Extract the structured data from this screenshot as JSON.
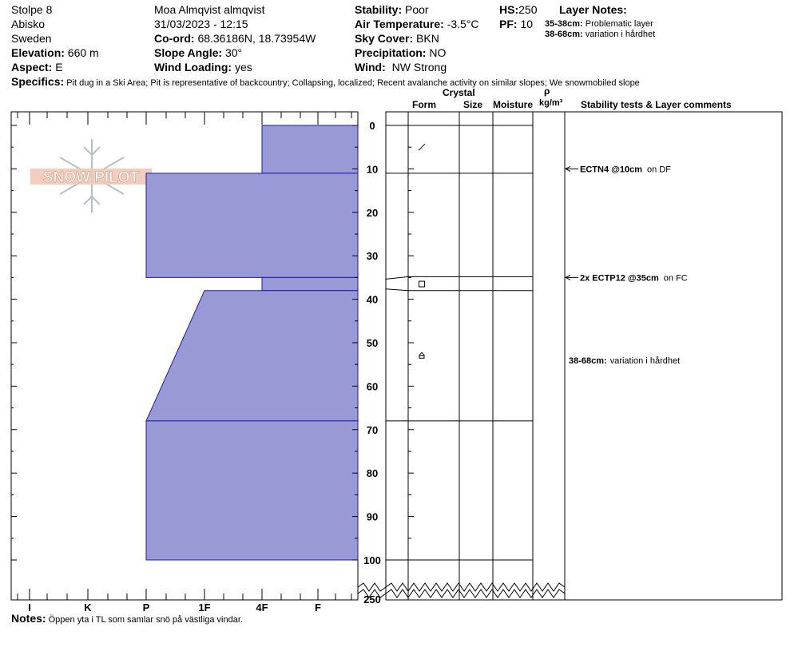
{
  "header": {
    "pit_name": "Stolpe 8",
    "location": "Abisko",
    "country": "Sweden",
    "elevation_label": "Elevation:",
    "elevation_value": "660 m",
    "aspect_label": "Aspect:",
    "aspect_value": "E",
    "observer": "Moa Almqvist almqvist",
    "datetime": "31/03/2023 - 12:15",
    "coord_label": "Co-ord:",
    "coord_value": "68.36186N, 18.73954W",
    "slope_label": "Slope Angle:",
    "slope_value": "30°",
    "wind_loading_label": "Wind Loading:",
    "wind_loading_value": "yes",
    "stability_label": "Stability:",
    "stability_value": "Poor",
    "air_temp_label": "Air Temperature:",
    "air_temp_value": "-3.5°C",
    "sky_label": "Sky Cover:",
    "sky_value": "BKN",
    "precip_label": "Precipitation:",
    "precip_value": "NO",
    "wind_label": "Wind:",
    "wind_value": "NW Strong",
    "hs_label": "HS:",
    "hs_value": "250",
    "pf_label": "PF:",
    "pf_value": "10",
    "layer_notes_title": "Layer Notes:",
    "layer_notes": [
      {
        "range": "35-38cm:",
        "text": "Problematic layer"
      },
      {
        "range": "38-68cm:",
        "text": "variation i hårdhet"
      }
    ],
    "specifics_label": "Specifics:",
    "specifics_value": "Pit dug in a Ski Area; Pit is representative of backcountry; Collapsing, localized; Recent avalanche activity on similar slopes; We snowmobiled slope"
  },
  "columns": {
    "crystal": "Crystal",
    "form": "Form",
    "size": "Size",
    "moisture": "Moisture",
    "rho": "ρ",
    "density_unit": "kg/m³",
    "stability": "Stability tests & Layer comments"
  },
  "logo_text": "SNOW PILOT",
  "chart_data": {
    "type": "area",
    "title": "",
    "xlabel": "",
    "ylabel": "",
    "x_ticks": [
      "I",
      "K",
      "P",
      "1F",
      "4F",
      "F"
    ],
    "y_ticks": [
      "0",
      "10",
      "20",
      "30",
      "40",
      "50",
      "60",
      "70",
      "80",
      "90",
      "100",
      "250"
    ],
    "ylim": [
      0,
      100
    ],
    "y_axis_break": "100-250",
    "hardness_scale": {
      "F": 1,
      "4F": 2,
      "1F": 3,
      "P": 4,
      "K": 5,
      "I": 6
    },
    "layers": [
      {
        "top": 0,
        "bottom": 11,
        "hardness_top": "4F",
        "hardness_bottom": "4F"
      },
      {
        "top": 11,
        "bottom": 35,
        "hardness_top": "P",
        "hardness_bottom": "P"
      },
      {
        "top": 35,
        "bottom": 38,
        "hardness_top": "4F",
        "hardness_bottom": "4F"
      },
      {
        "top": 38,
        "bottom": 68,
        "hardness_top": "1F",
        "hardness_bottom": "P"
      },
      {
        "top": 68,
        "bottom": 100,
        "hardness_top": "P",
        "hardness_bottom": "P"
      }
    ],
    "layer_boundaries": [
      0,
      11,
      35,
      38,
      68,
      100
    ],
    "tests": [
      {
        "depth": 10,
        "result": "ECTN4 @10cm",
        "note": "on DF"
      },
      {
        "depth": 35,
        "result": "2x ECTP12 @35cm",
        "note": "on FC"
      }
    ],
    "layer_comments": [
      {
        "depth": 54,
        "range": "38-68cm:",
        "text": "variation i hårdhet"
      }
    ],
    "crystal_forms": [
      {
        "depth": 5,
        "form": "DF"
      },
      {
        "depth": 36.5,
        "form": "FC"
      },
      {
        "depth": 53,
        "form": "DH"
      }
    ],
    "colors": {
      "fill": "#9999d6",
      "stroke": "#1a1ab3"
    }
  },
  "notes_label": "Notes:",
  "notes_value": "Öppen yta i TL som samlar snö på västliga vindar."
}
